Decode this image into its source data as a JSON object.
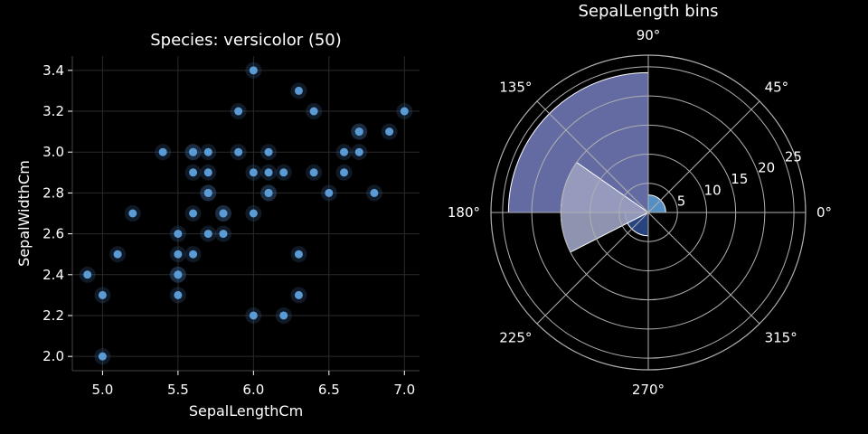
{
  "colors": {
    "background": "#000000",
    "text": "#ffffff",
    "grid": "#2a2a2a",
    "spine": "#444444",
    "point": "#5b9bd5",
    "polar_grid": "#b0b0b0"
  },
  "chart_data": [
    {
      "type": "scatter",
      "title": "Species: versicolor (50)",
      "xlabel": "SepalLengthCm",
      "ylabel": "SepalWidthCm",
      "xlim": [
        4.8,
        7.1
      ],
      "ylim": [
        1.93,
        3.47
      ],
      "xticks": [
        5.0,
        5.5,
        6.0,
        6.5,
        7.0
      ],
      "xtick_labels": [
        "5.0",
        "5.5",
        "6.0",
        "6.5",
        "7.0"
      ],
      "yticks": [
        2.0,
        2.2,
        2.4,
        2.6,
        2.8,
        3.0,
        3.2,
        3.4
      ],
      "ytick_labels": [
        "2.0",
        "2.2",
        "2.4",
        "2.6",
        "2.8",
        "3.0",
        "3.2",
        "3.4"
      ],
      "grid": true,
      "points": [
        [
          7.0,
          3.2
        ],
        [
          6.4,
          3.2
        ],
        [
          6.9,
          3.1
        ],
        [
          5.5,
          2.3
        ],
        [
          6.5,
          2.8
        ],
        [
          5.7,
          2.8
        ],
        [
          6.3,
          3.3
        ],
        [
          4.9,
          2.4
        ],
        [
          6.6,
          2.9
        ],
        [
          5.2,
          2.7
        ],
        [
          5.0,
          2.0
        ],
        [
          5.9,
          3.0
        ],
        [
          6.0,
          2.2
        ],
        [
          6.1,
          2.9
        ],
        [
          5.6,
          2.9
        ],
        [
          6.7,
          3.1
        ],
        [
          5.6,
          3.0
        ],
        [
          5.8,
          2.7
        ],
        [
          6.2,
          2.2
        ],
        [
          5.6,
          2.5
        ],
        [
          5.9,
          3.2
        ],
        [
          6.1,
          2.8
        ],
        [
          6.3,
          2.5
        ],
        [
          6.1,
          2.8
        ],
        [
          6.4,
          2.9
        ],
        [
          6.6,
          3.0
        ],
        [
          6.8,
          2.8
        ],
        [
          6.7,
          3.0
        ],
        [
          6.0,
          2.9
        ],
        [
          5.7,
          2.6
        ],
        [
          5.5,
          2.4
        ],
        [
          5.5,
          2.4
        ],
        [
          5.8,
          2.7
        ],
        [
          6.0,
          2.7
        ],
        [
          5.4,
          3.0
        ],
        [
          6.0,
          3.4
        ],
        [
          6.7,
          3.1
        ],
        [
          6.3,
          2.3
        ],
        [
          5.6,
          3.0
        ],
        [
          5.5,
          2.5
        ],
        [
          5.5,
          2.6
        ],
        [
          6.1,
          3.0
        ],
        [
          5.8,
          2.6
        ],
        [
          5.0,
          2.3
        ],
        [
          5.6,
          2.7
        ],
        [
          5.7,
          3.0
        ],
        [
          5.7,
          2.9
        ],
        [
          6.2,
          2.9
        ],
        [
          5.1,
          2.5
        ],
        [
          5.7,
          2.8
        ]
      ]
    },
    {
      "type": "polar-bar",
      "title": "SepalLength bins",
      "rlim": [
        0,
        27
      ],
      "rticks": [
        5,
        10,
        15,
        20,
        25
      ],
      "rtick_labels": [
        "5",
        "10",
        "15",
        "20",
        "25"
      ],
      "angle_ticks": [
        0,
        45,
        90,
        135,
        180,
        225,
        270,
        315
      ],
      "angle_tick_labels": [
        "0°",
        "45°",
        "90°",
        "135°",
        "180°",
        "225°",
        "270°",
        "315°"
      ],
      "bars": [
        {
          "start_deg": 0,
          "end_deg": 90,
          "value": 3,
          "color": "#5b9bd5"
        },
        {
          "start_deg": 90,
          "end_deg": 180,
          "value": 24,
          "color": "#6b74b0"
        },
        {
          "start_deg": 180,
          "end_deg": 270,
          "value": 4,
          "color": "#2b4a8a"
        },
        {
          "start_deg": 145,
          "end_deg": 207,
          "value": 15,
          "color": "#9aa0bf"
        }
      ]
    }
  ]
}
